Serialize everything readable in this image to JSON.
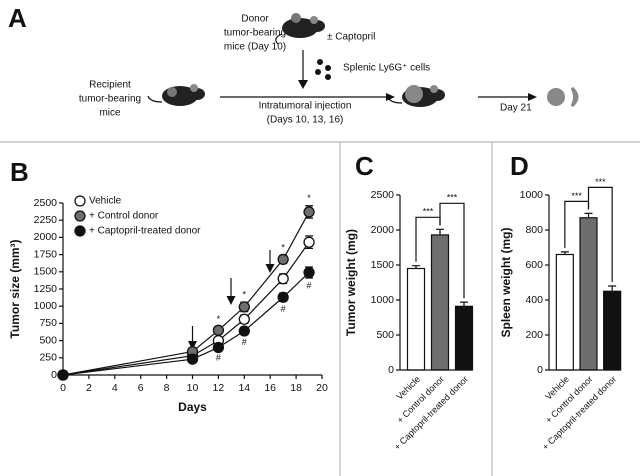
{
  "panel_labels": [
    "A",
    "B",
    "C",
    "D"
  ],
  "diagram": {
    "donor": [
      "Donor",
      "tumor-bearing",
      "mice (Day 10)"
    ],
    "treatment": "± Captopril",
    "cells": "Splenic Ly6G⁺ cells",
    "recipient": [
      "Recipient",
      "tumor-bearing",
      "mice"
    ],
    "injection": [
      "Intratumoral injection",
      "(Days 10, 13, 16)"
    ],
    "endpoint": "Day 21"
  },
  "chart_data": [
    {
      "type": "line",
      "x_label": "Days",
      "y_label": "Tumor size (mm³)",
      "x": [
        0,
        10,
        12,
        14,
        17,
        19
      ],
      "series": [
        {
          "name": "Vehicle",
          "color": "#ffffff",
          "values": [
            0,
            280,
            500,
            810,
            1400,
            1930
          ],
          "errors": [
            0,
            30,
            50,
            60,
            70,
            90
          ],
          "point_labels": [
            null,
            null,
            null,
            null,
            null,
            null
          ]
        },
        {
          "name": "+ Control donor",
          "color": "#6e6e6e",
          "values": [
            0,
            340,
            650,
            990,
            1680,
            2370
          ],
          "errors": [
            0,
            40,
            50,
            70,
            60,
            90
          ],
          "point_labels": [
            null,
            null,
            "*",
            "*",
            "*",
            "*"
          ]
        },
        {
          "name": "+ Captopril-treated donor",
          "color": "#111111",
          "values": [
            0,
            230,
            400,
            640,
            1130,
            1490
          ],
          "errors": [
            0,
            30,
            40,
            50,
            60,
            80
          ],
          "point_labels": [
            null,
            null,
            "#",
            "#",
            "#",
            "#"
          ]
        }
      ],
      "xlim": [
        0,
        20
      ],
      "xticks": [
        0,
        2,
        4,
        6,
        8,
        10,
        12,
        14,
        16,
        18,
        20
      ],
      "ylim": [
        0,
        2500
      ],
      "yticks": [
        0,
        250,
        500,
        750,
        1000,
        1250,
        1500,
        1750,
        2000,
        2250,
        2500
      ],
      "legend": "top-left"
    },
    {
      "type": "bar",
      "y_label": "Tumor weight (mg)",
      "categories": [
        "Vehicle",
        "+ Control donor",
        "+ Captopril-treated donor"
      ],
      "values": [
        1450,
        1930,
        910
      ],
      "errors": [
        40,
        80,
        60
      ],
      "colors": [
        "#ffffff",
        "#6e6e6e",
        "#111111"
      ],
      "ylim": [
        0,
        2500
      ],
      "yticks": [
        0,
        500,
        1000,
        1500,
        2000,
        2500
      ],
      "significance": [
        "***",
        "***"
      ]
    },
    {
      "type": "bar",
      "y_label": "Spleen weight (mg)",
      "categories": [
        "Vehicle",
        "+ Control donor",
        "+ Captopril-treated donor"
      ],
      "values": [
        660,
        870,
        450
      ],
      "errors": [
        15,
        25,
        30
      ],
      "colors": [
        "#ffffff",
        "#6e6e6e",
        "#111111"
      ],
      "ylim": [
        0,
        1000
      ],
      "yticks": [
        0,
        200,
        400,
        600,
        800,
        1000
      ],
      "significance": [
        "***",
        "***"
      ]
    }
  ]
}
